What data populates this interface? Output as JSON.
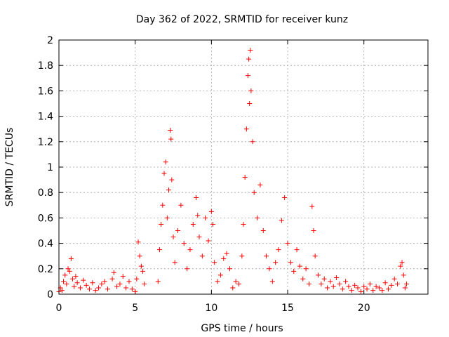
{
  "chart_data": {
    "type": "scatter",
    "title": "Day 362 of 2022, SRMTID for receiver kunz",
    "xlabel": "GPS time / hours",
    "ylabel": "SRMTID / TECUs",
    "xlim": [
      0,
      24.2
    ],
    "ylim": [
      0,
      2
    ],
    "xticks": [
      0,
      5,
      10,
      15,
      20
    ],
    "xtick_labels": [
      "0",
      "5",
      "10",
      "15",
      "20"
    ],
    "yticks": [
      0,
      0.2,
      0.4,
      0.6,
      0.8,
      1,
      1.2,
      1.4,
      1.6,
      1.8,
      2
    ],
    "ytick_labels": [
      "0",
      "0.2",
      "0.4",
      "0.6",
      "0.8",
      "1",
      "1.2",
      "1.4",
      "1.6",
      "1.8",
      "2"
    ],
    "grid": true,
    "marker": "+",
    "marker_color": "#ff0000",
    "series": [
      {
        "name": "SRMTID",
        "points": [
          [
            0.0,
            0.02
          ],
          [
            0.1,
            0.05
          ],
          [
            0.2,
            0.03
          ],
          [
            0.3,
            0.1
          ],
          [
            0.4,
            0.15
          ],
          [
            0.5,
            0.08
          ],
          [
            0.6,
            0.2
          ],
          [
            0.7,
            0.18
          ],
          [
            0.8,
            0.28
          ],
          [
            0.9,
            0.12
          ],
          [
            1.0,
            0.06
          ],
          [
            1.1,
            0.14
          ],
          [
            1.2,
            0.09
          ],
          [
            1.4,
            0.05
          ],
          [
            1.6,
            0.11
          ],
          [
            1.8,
            0.07
          ],
          [
            2.0,
            0.04
          ],
          [
            2.2,
            0.09
          ],
          [
            2.4,
            0.03
          ],
          [
            2.6,
            0.05
          ],
          [
            2.8,
            0.08
          ],
          [
            3.0,
            0.1
          ],
          [
            3.2,
            0.04
          ],
          [
            3.5,
            0.12
          ],
          [
            3.6,
            0.17
          ],
          [
            3.8,
            0.06
          ],
          [
            4.0,
            0.08
          ],
          [
            4.2,
            0.14
          ],
          [
            4.4,
            0.05
          ],
          [
            4.6,
            0.1
          ],
          [
            4.8,
            0.04
          ],
          [
            5.0,
            0.02
          ],
          [
            5.1,
            0.12
          ],
          [
            5.2,
            0.41
          ],
          [
            5.3,
            0.3
          ],
          [
            5.4,
            0.22
          ],
          [
            5.5,
            0.18
          ],
          [
            5.6,
            0.08
          ],
          [
            6.5,
            0.1
          ],
          [
            6.6,
            0.35
          ],
          [
            6.7,
            0.55
          ],
          [
            6.8,
            0.7
          ],
          [
            6.9,
            0.95
          ],
          [
            7.0,
            1.04
          ],
          [
            7.1,
            0.6
          ],
          [
            7.2,
            0.82
          ],
          [
            7.3,
            1.29
          ],
          [
            7.35,
            1.22
          ],
          [
            7.4,
            0.9
          ],
          [
            7.5,
            0.45
          ],
          [
            7.6,
            0.25
          ],
          [
            7.8,
            0.5
          ],
          [
            8.0,
            0.7
          ],
          [
            8.2,
            0.4
          ],
          [
            8.4,
            0.2
          ],
          [
            8.6,
            0.35
          ],
          [
            8.8,
            0.55
          ],
          [
            9.0,
            0.76
          ],
          [
            9.1,
            0.62
          ],
          [
            9.2,
            0.45
          ],
          [
            9.4,
            0.3
          ],
          [
            9.6,
            0.6
          ],
          [
            9.8,
            0.42
          ],
          [
            10.0,
            0.65
          ],
          [
            10.1,
            0.55
          ],
          [
            10.2,
            0.25
          ],
          [
            10.4,
            0.1
          ],
          [
            10.6,
            0.15
          ],
          [
            10.8,
            0.28
          ],
          [
            11.0,
            0.32
          ],
          [
            11.2,
            0.2
          ],
          [
            11.4,
            0.05
          ],
          [
            11.6,
            0.1
          ],
          [
            11.8,
            0.08
          ],
          [
            12.0,
            0.3
          ],
          [
            12.1,
            0.55
          ],
          [
            12.2,
            0.92
          ],
          [
            12.3,
            1.3
          ],
          [
            12.4,
            1.72
          ],
          [
            12.45,
            1.85
          ],
          [
            12.5,
            1.5
          ],
          [
            12.55,
            1.92
          ],
          [
            12.6,
            1.6
          ],
          [
            12.7,
            1.2
          ],
          [
            12.8,
            0.8
          ],
          [
            13.0,
            0.6
          ],
          [
            13.2,
            0.86
          ],
          [
            13.4,
            0.5
          ],
          [
            13.6,
            0.3
          ],
          [
            13.8,
            0.2
          ],
          [
            14.0,
            0.1
          ],
          [
            14.2,
            0.25
          ],
          [
            14.4,
            0.35
          ],
          [
            14.6,
            0.58
          ],
          [
            14.8,
            0.76
          ],
          [
            15.0,
            0.4
          ],
          [
            15.2,
            0.25
          ],
          [
            15.4,
            0.18
          ],
          [
            15.6,
            0.35
          ],
          [
            15.8,
            0.22
          ],
          [
            16.0,
            0.12
          ],
          [
            16.2,
            0.2
          ],
          [
            16.4,
            0.08
          ],
          [
            16.6,
            0.69
          ],
          [
            16.7,
            0.5
          ],
          [
            16.8,
            0.3
          ],
          [
            17.0,
            0.15
          ],
          [
            17.2,
            0.08
          ],
          [
            17.4,
            0.12
          ],
          [
            17.6,
            0.05
          ],
          [
            17.8,
            0.1
          ],
          [
            18.0,
            0.06
          ],
          [
            18.2,
            0.13
          ],
          [
            18.4,
            0.08
          ],
          [
            18.6,
            0.04
          ],
          [
            18.8,
            0.1
          ],
          [
            19.0,
            0.06
          ],
          [
            19.2,
            0.03
          ],
          [
            19.4,
            0.07
          ],
          [
            19.6,
            0.05
          ],
          [
            19.8,
            0.02
          ],
          [
            20.0,
            0.06
          ],
          [
            20.2,
            0.04
          ],
          [
            20.4,
            0.08
          ],
          [
            20.6,
            0.03
          ],
          [
            20.8,
            0.06
          ],
          [
            21.0,
            0.05
          ],
          [
            21.2,
            0.03
          ],
          [
            21.4,
            0.09
          ],
          [
            21.6,
            0.04
          ],
          [
            21.8,
            0.07
          ],
          [
            22.0,
            0.12
          ],
          [
            22.2,
            0.08
          ],
          [
            22.4,
            0.22
          ],
          [
            22.5,
            0.25
          ],
          [
            22.6,
            0.15
          ],
          [
            22.7,
            0.05
          ],
          [
            22.8,
            0.08
          ]
        ]
      }
    ]
  }
}
